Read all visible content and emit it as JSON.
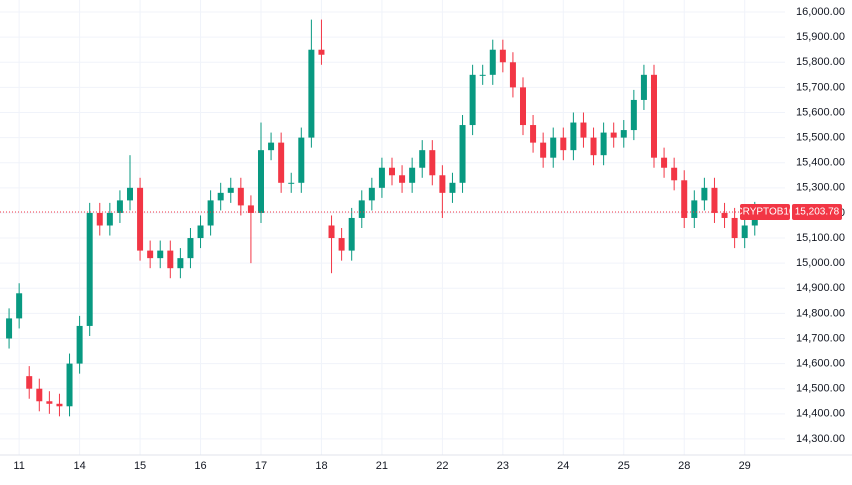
{
  "chart_data": {
    "type": "candlestick",
    "symbol": "CRYPTOB10",
    "up_color": "#089981",
    "down_color": "#f23645",
    "grid": true,
    "last_price": {
      "value": 15203.78,
      "label": "15,203.78"
    },
    "xlim": [
      -1.9,
      76
    ],
    "ylim": [
      14236,
      16048
    ],
    "xticks": [
      {
        "value": 0,
        "label": "11"
      },
      {
        "value": 6,
        "label": "14"
      },
      {
        "value": 12,
        "label": "15"
      },
      {
        "value": 18,
        "label": "16"
      },
      {
        "value": 24,
        "label": "17"
      },
      {
        "value": 30,
        "label": "18"
      },
      {
        "value": 36,
        "label": "21"
      },
      {
        "value": 42,
        "label": "22"
      },
      {
        "value": 48,
        "label": "23"
      },
      {
        "value": 54,
        "label": "24"
      },
      {
        "value": 60,
        "label": "25"
      },
      {
        "value": 66,
        "label": "28"
      },
      {
        "value": 72,
        "label": "29"
      }
    ],
    "yticks": [
      {
        "value": 14300,
        "label": "14,300.00"
      },
      {
        "value": 14400,
        "label": "14,400.00"
      },
      {
        "value": 14500,
        "label": "14,500.00"
      },
      {
        "value": 14600,
        "label": "14,600.00"
      },
      {
        "value": 14700,
        "label": "14,700.00"
      },
      {
        "value": 14800,
        "label": "14,800.00"
      },
      {
        "value": 14900,
        "label": "14,900.00"
      },
      {
        "value": 15000,
        "label": "15,000.00"
      },
      {
        "value": 15100,
        "label": "15,100.00"
      },
      {
        "value": 15200,
        "label": "15,200.00"
      },
      {
        "value": 15300,
        "label": "15,300.00"
      },
      {
        "value": 15400,
        "label": "15,400.00"
      },
      {
        "value": 15500,
        "label": "15,500.00"
      },
      {
        "value": 15600,
        "label": "15,600.00"
      },
      {
        "value": 15700,
        "label": "15,700.00"
      },
      {
        "value": 15800,
        "label": "15,800.00"
      },
      {
        "value": 15900,
        "label": "15,900.00"
      },
      {
        "value": 16000,
        "label": "16,000.00"
      }
    ],
    "x": [
      -1,
      0,
      1,
      2,
      3,
      4,
      5,
      6,
      7,
      8,
      9,
      10,
      11,
      12,
      13,
      14,
      15,
      16,
      17,
      18,
      19,
      20,
      21,
      22,
      23,
      24,
      25,
      26,
      27,
      28,
      29,
      30,
      31,
      32,
      33,
      34,
      35,
      36,
      37,
      38,
      39,
      40,
      41,
      42,
      43,
      44,
      45,
      46,
      47,
      48,
      49,
      50,
      51,
      52,
      53,
      54,
      55,
      56,
      57,
      58,
      59,
      60,
      61,
      62,
      63,
      64,
      65,
      66,
      67,
      68,
      69,
      70,
      71,
      72,
      73
    ],
    "open": [
      14700,
      14780,
      14550,
      14500,
      14450,
      14440,
      14430,
      14600,
      14750,
      15200,
      15150,
      15200,
      15250,
      15300,
      15050,
      15020,
      15050,
      14980,
      15020,
      15100,
      15150,
      15250,
      15280,
      15300,
      15230,
      15200,
      15450,
      15480,
      15320,
      15320,
      15500,
      15850,
      15150,
      15100,
      15050,
      15180,
      15250,
      15300,
      15380,
      15350,
      15320,
      15380,
      15450,
      15350,
      15280,
      15320,
      15550,
      15750,
      15750,
      15850,
      15800,
      15700,
      15550,
      15480,
      15420,
      15500,
      15450,
      15560,
      15500,
      15430,
      15520,
      15500,
      15530,
      15650,
      15750,
      15420,
      15380,
      15330,
      15180,
      15250,
      15300,
      15200,
      15180,
      15100,
      15150
    ],
    "high": [
      14820,
      14920,
      14590,
      14540,
      14490,
      14480,
      14640,
      14790,
      15240,
      15240,
      15240,
      15290,
      15430,
      15340,
      15090,
      15090,
      15090,
      15060,
      15140,
      15190,
      15290,
      15320,
      15340,
      15340,
      15270,
      15560,
      15520,
      15520,
      15360,
      15540,
      15970,
      15970,
      15190,
      15140,
      15220,
      15290,
      15340,
      15420,
      15420,
      15390,
      15420,
      15490,
      15490,
      15390,
      15360,
      15590,
      15790,
      15790,
      15890,
      15890,
      15840,
      15740,
      15590,
      15520,
      15540,
      15540,
      15600,
      15600,
      15540,
      15560,
      15560,
      15570,
      15690,
      15790,
      15790,
      15460,
      15420,
      15370,
      15290,
      15340,
      15340,
      15240,
      15220,
      15190,
      15244
    ],
    "low": [
      14660,
      14740,
      14460,
      14410,
      14400,
      14390,
      14390,
      14560,
      14710,
      15110,
      15110,
      15160,
      15210,
      15010,
      14980,
      14980,
      14940,
      14940,
      14980,
      15060,
      15110,
      15210,
      15240,
      15190,
      15000,
      15160,
      15410,
      15280,
      15280,
      15280,
      15460,
      15790,
      14960,
      15010,
      15010,
      15140,
      15210,
      15260,
      15310,
      15280,
      15280,
      15340,
      15310,
      15180,
      15240,
      15280,
      15510,
      15710,
      15710,
      15760,
      15660,
      15510,
      15440,
      15380,
      15380,
      15410,
      15410,
      15460,
      15390,
      15390,
      15460,
      15460,
      15490,
      15610,
      15380,
      15340,
      15290,
      15140,
      15140,
      15210,
      15160,
      15140,
      15060,
      15060,
      15110
    ],
    "close": [
      14780,
      14880,
      14500,
      14450,
      14440,
      14430,
      14600,
      14750,
      15200,
      15150,
      15200,
      15250,
      15300,
      15050,
      15020,
      15050,
      14980,
      15020,
      15100,
      15150,
      15250,
      15280,
      15300,
      15230,
      15200,
      15450,
      15480,
      15320,
      15320,
      15500,
      15850,
      15830,
      15100,
      15050,
      15180,
      15250,
      15300,
      15380,
      15350,
      15320,
      15380,
      15450,
      15350,
      15280,
      15320,
      15550,
      15750,
      15750,
      15850,
      15800,
      15700,
      15550,
      15480,
      15420,
      15500,
      15450,
      15560,
      15500,
      15430,
      15520,
      15500,
      15530,
      15650,
      15750,
      15420,
      15380,
      15330,
      15180,
      15250,
      15300,
      15200,
      15180,
      15100,
      15150,
      15203.78
    ]
  }
}
